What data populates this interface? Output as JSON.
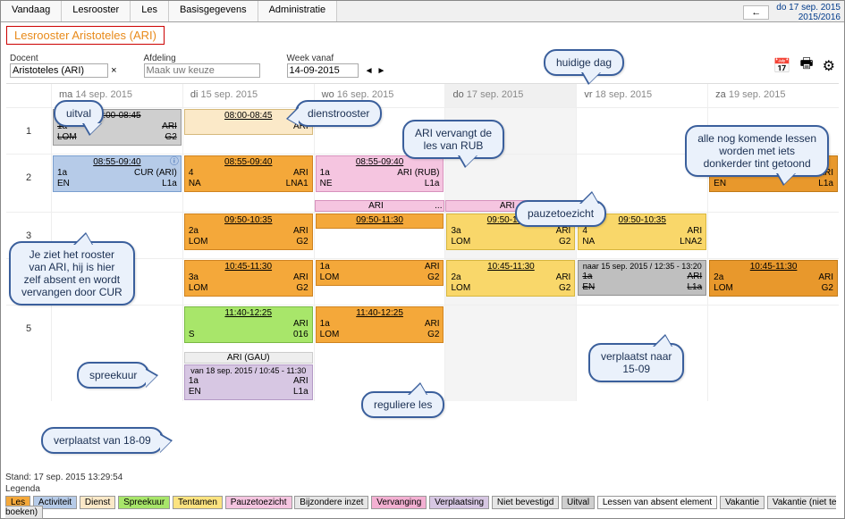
{
  "topmenu": {
    "tabs": [
      "Vandaag",
      "Lesrooster",
      "Les",
      "Basisgegevens",
      "Administratie"
    ],
    "back_arrow": "←",
    "date_line1": "do 17 sep. 2015",
    "date_line2": "2015/2016"
  },
  "title": "Lesrooster Aristoteles (ARI)",
  "controls": {
    "docent_label": "Docent",
    "docent_value": "Aristoteles (ARI)",
    "clear": "×",
    "afdeling_label": "Afdeling",
    "afdeling_placeholder": "Maak uw keuze",
    "week_label": "Week vanaf",
    "week_value": "14-09-2015",
    "nav_prev": "◄",
    "nav_next": "►"
  },
  "icons": {
    "calendar": "📅",
    "print": "🖶",
    "gear": "⚙"
  },
  "days": [
    {
      "name": "ma",
      "date": "14 sep. 2015",
      "today": false
    },
    {
      "name": "di",
      "date": "15 sep. 2015",
      "today": false
    },
    {
      "name": "wo",
      "date": "16 sep. 2015",
      "today": false
    },
    {
      "name": "do",
      "date": "17 sep. 2015",
      "today": true
    },
    {
      "name": "vr",
      "date": "18 sep. 2015",
      "today": false
    },
    {
      "name": "za",
      "date": "19 sep. 2015",
      "today": false
    }
  ],
  "periods": [
    "1",
    "2",
    "3",
    "4",
    "5"
  ],
  "rows": [
    {
      "period": "1",
      "cells": [
        {
          "lessons": [
            {
              "style": "gray",
              "time": "08:00-08:45",
              "lines": [
                [
                  "1a",
                  "ARI"
                ],
                [
                  "LOM",
                  "G2"
                ]
              ],
              "strike": true
            }
          ]
        },
        {
          "lessons": [
            {
              "style": "cream",
              "time": "08:00-08:45",
              "lines": [
                [
                  "",
                  "ARI"
                ]
              ]
            }
          ]
        },
        {
          "lessons": []
        },
        {
          "today": true,
          "lessons": []
        },
        {
          "lessons": []
        },
        {
          "lessons": []
        }
      ]
    },
    {
      "period": "2",
      "cells": [
        {
          "lessons": [
            {
              "style": "blue",
              "time": "08:55-09:40",
              "lines": [
                [
                  "1a",
                  "CUR (ARI)"
                ],
                [
                  "EN",
                  "L1a"
                ]
              ],
              "info": "ⓘ"
            }
          ]
        },
        {
          "lessons": [
            {
              "style": "orange",
              "time": "08:55-09:40",
              "lines": [
                [
                  "4",
                  "ARI"
                ],
                [
                  "NA",
                  "LNA1"
                ]
              ]
            }
          ]
        },
        {
          "lessons": [
            {
              "style": "pink",
              "time": "08:55-09:40",
              "lines": [
                [
                  "1a",
                  "ARI (RUB)"
                ],
                [
                  "NE",
                  "L1a"
                ]
              ]
            }
          ]
        },
        {
          "today": true,
          "lessons": []
        },
        {
          "lessons": []
        },
        {
          "lessons": [
            {
              "style": "dorange",
              "time": "08:55-09:40",
              "lines": [
                [
                  "1a",
                  "ARI"
                ],
                [
                  "EN",
                  "L1a"
                ]
              ]
            }
          ]
        }
      ]
    }
  ],
  "pausebar": {
    "wo": {
      "text": "ARI",
      "dots": "..."
    },
    "do": {
      "text": "ARI",
      "dots": "..."
    }
  },
  "rows2": [
    {
      "period": "3",
      "cells": [
        {
          "lessons": []
        },
        {
          "lessons": [
            {
              "style": "orange",
              "time": "09:50-10:35",
              "lines": [
                [
                  "2a",
                  "ARI"
                ],
                [
                  "LOM",
                  "G2"
                ]
              ]
            }
          ]
        },
        {
          "lessons": [
            {
              "style": "orange",
              "time": "09:50-11:30",
              "lines": [
                [
                  " ",
                  " "
                ]
              ],
              "tall": true
            }
          ]
        },
        {
          "today": true,
          "lessons": [
            {
              "style": "yellow2",
              "time": "09:50-10:35",
              "lines": [
                [
                  "3a",
                  "ARI"
                ],
                [
                  "LOM",
                  "G2"
                ]
              ]
            }
          ]
        },
        {
          "lessons": [
            {
              "style": "yellow2",
              "time": "09:50-10:35",
              "lines": [
                [
                  "4",
                  "ARI"
                ],
                [
                  "NA",
                  "LNA2"
                ]
              ]
            }
          ]
        },
        {
          "lessons": []
        }
      ]
    },
    {
      "period": "4",
      "cells": [
        {
          "lessons": []
        },
        {
          "lessons": [
            {
              "style": "orange",
              "time": "10:45-11:30",
              "lines": [
                [
                  "3a",
                  "ARI"
                ],
                [
                  "LOM",
                  "G2"
                ]
              ]
            }
          ]
        },
        {
          "lessons": [
            {
              "style": "orange",
              "time_plain": "",
              "lines": [
                [
                  "1a",
                  "ARI"
                ],
                [
                  "LOM",
                  "G2"
                ]
              ]
            }
          ]
        },
        {
          "today": true,
          "lessons": [
            {
              "style": "yellow2",
              "time": "10:45-11:30",
              "lines": [
                [
                  "2a",
                  "ARI"
                ],
                [
                  "LOM",
                  "G2"
                ]
              ]
            }
          ]
        },
        {
          "lessons": [
            {
              "style": "gray2",
              "time_plain": "naar 15 sep. 2015 / 12:35 - 13:20",
              "lines": [
                [
                  "1a",
                  "ARI"
                ],
                [
                  "EN",
                  "L1a"
                ]
              ],
              "strike": true
            }
          ]
        },
        {
          "lessons": [
            {
              "style": "dorange",
              "time": "10:45-11:30",
              "lines": [
                [
                  "2a",
                  "ARI"
                ],
                [
                  "LOM",
                  "G2"
                ]
              ]
            }
          ]
        }
      ]
    },
    {
      "period": "5",
      "cells": [
        {
          "lessons": []
        },
        {
          "lessons": [
            {
              "style": "green",
              "time": "11:40-12:25",
              "lines": [
                [
                  "",
                  "ARI"
                ],
                [
                  "S",
                  "016"
                ]
              ]
            }
          ]
        },
        {
          "lessons": [
            {
              "style": "orange",
              "time": "11:40-12:25",
              "lines": [
                [
                  "1a",
                  "ARI"
                ],
                [
                  "LOM",
                  "G2"
                ]
              ]
            }
          ]
        },
        {
          "today": true,
          "lessons": []
        },
        {
          "lessons": []
        },
        {
          "lessons": []
        }
      ]
    }
  ],
  "extra": {
    "di_header": "ARI (GAU)",
    "di_lesson": {
      "style": "purple",
      "time_plain": "van 18 sep. 2015 / 10:45 - 11:30",
      "lines": [
        [
          "1a",
          "ARI"
        ],
        [
          "EN",
          "L1a"
        ]
      ]
    }
  },
  "footer": {
    "stand": "Stand: 17 sep. 2015 13:29:54",
    "legend_label": "Legenda",
    "items": [
      {
        "label": "Les",
        "bg": "#f4a83a"
      },
      {
        "label": "Activiteit",
        "bg": "#b6cbe8"
      },
      {
        "label": "Dienst",
        "bg": "#fbe9c8"
      },
      {
        "label": "Spreekuur",
        "bg": "#a8e66a"
      },
      {
        "label": "Tentamen",
        "bg": "#fce380"
      },
      {
        "label": "Pauzetoezicht",
        "bg": "#f5c5e0"
      },
      {
        "label": "Bijzondere inzet",
        "bg": "#e6e6e6"
      },
      {
        "label": "Vervanging",
        "bg": "#f3b0d2"
      },
      {
        "label": "Verplaatsing",
        "bg": "#d7c7e3"
      },
      {
        "label": "Niet bevestigd",
        "bg": "#e6e6e6"
      },
      {
        "label": "Uitval",
        "bg": "#cfcfcf"
      },
      {
        "label": "Lessen van absent element",
        "bg": "#f8f8f8"
      },
      {
        "label": "Vakantie",
        "bg": "#e6e6e6"
      },
      {
        "label": "Vakantie (niet te boeken)",
        "bg": "#e6e6e6"
      }
    ]
  },
  "callouts": {
    "uitval": "uitval",
    "dienstrooster": "dienstrooster",
    "huidigedag": "huidige dag",
    "allefuture": "alle nog komende lessen\nworden met iets\ndonkerder tint getoond",
    "arivervangt": "ARI vervangt de\nles van RUB",
    "pauze": "pauzetoezicht",
    "jeziet": "Je ziet het rooster\nvan ARI, hij is hier\nzelf absent en wordt\nvervangen door CUR",
    "spreekuur": "spreekuur",
    "reguliere": "reguliere les",
    "verplaatstnaar": "verplaatst naar\n15-09",
    "verplaatstvan": "verplaatst van 18-09"
  }
}
